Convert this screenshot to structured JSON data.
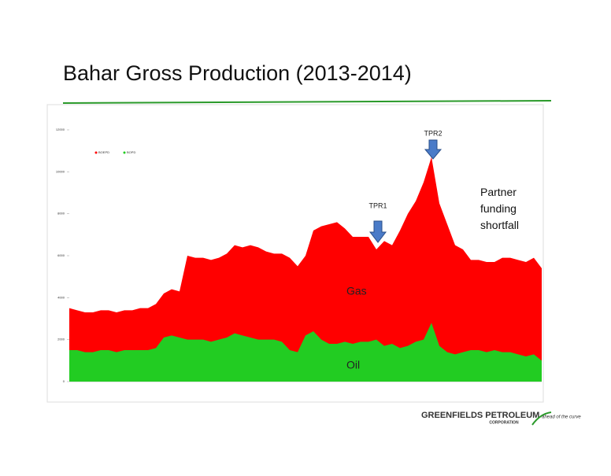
{
  "chart_data": {
    "type": "area",
    "title": "Bahar Gross Production (2013-2014)",
    "ylim": [
      0,
      12000
    ],
    "yticks": [
      0,
      2000,
      4000,
      6000,
      8000,
      10000,
      12000
    ],
    "series": [
      {
        "name": "BOEPD",
        "color": "#ff0000",
        "values": [
          3500,
          3400,
          3300,
          3300,
          3400,
          3400,
          3300,
          3400,
          3400,
          3500,
          3500,
          3700,
          4200,
          4400,
          4300,
          6000,
          5900,
          5900,
          5800,
          5900,
          6100,
          6500,
          6400,
          6500,
          6400,
          6200,
          6100,
          6100,
          5900,
          5500,
          6000,
          7200,
          7400,
          7500,
          7600,
          7300,
          6900,
          6900,
          6900,
          6300,
          6700,
          6500,
          7200,
          8000,
          8600,
          9500,
          10700,
          8500,
          7500,
          6500,
          6300,
          5800,
          5800,
          5700,
          5700,
          5900,
          5900,
          5800,
          5700,
          5900,
          5400
        ]
      },
      {
        "name": "BOPD",
        "color": "#22cc22",
        "values": [
          1500,
          1500,
          1400,
          1400,
          1500,
          1500,
          1400,
          1500,
          1500,
          1500,
          1500,
          1600,
          2100,
          2200,
          2100,
          2000,
          2000,
          2000,
          1900,
          2000,
          2100,
          2300,
          2200,
          2100,
          2000,
          2000,
          2000,
          1900,
          1500,
          1400,
          2200,
          2400,
          2000,
          1800,
          1800,
          1900,
          1800,
          1900,
          1900,
          2000,
          1700,
          1800,
          1600,
          1700,
          1900,
          2000,
          2800,
          1700,
          1400,
          1300,
          1400,
          1500,
          1500,
          1400,
          1500,
          1400,
          1400,
          1300,
          1200,
          1300,
          1000
        ]
      }
    ],
    "annotations": [
      "TPR1",
      "TPR2",
      "Partner funding shortfall",
      "Gas",
      "Oil"
    ],
    "logo": {
      "name": "GREENFIELDS PETROLEUM",
      "sub": "CORPORATION",
      "tagline": "ahead of the curve"
    }
  }
}
